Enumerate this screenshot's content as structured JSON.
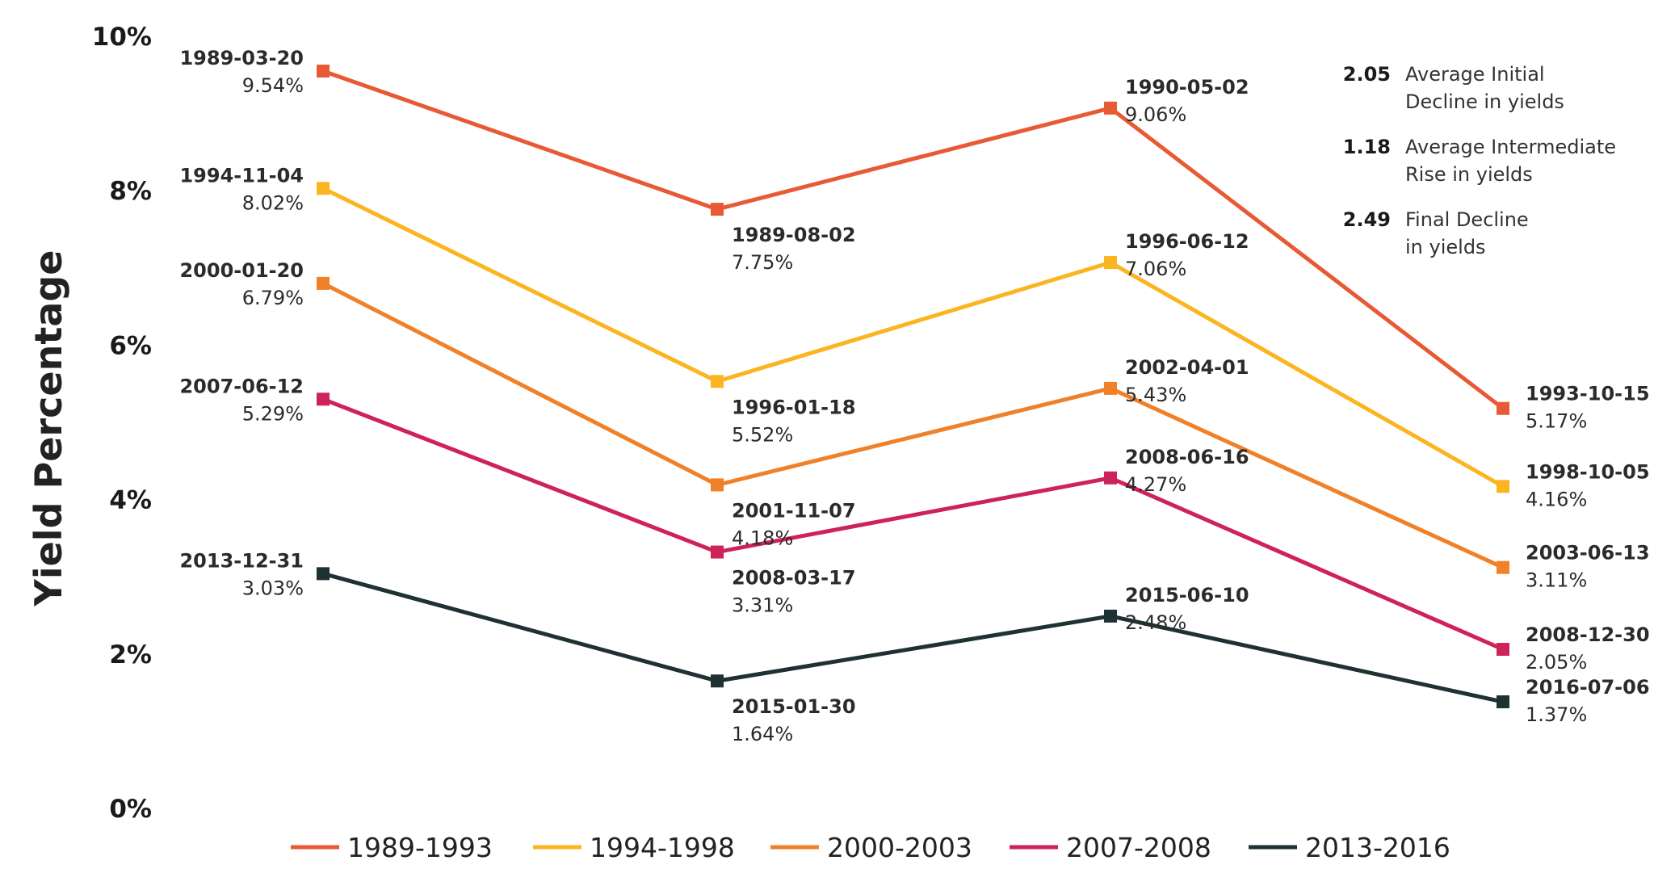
{
  "colors": {
    "1989-1993": "#E85A35",
    "1994-1998": "#FBB521",
    "2000-2003": "#F08129",
    "2007-2008": "#CE2359",
    "2013-2016": "#1F3233"
  },
  "chart_data": {
    "type": "line",
    "ylabel": "Yield Percentage",
    "ylim": [
      0,
      10
    ],
    "yticks": [
      "0%",
      "2%",
      "4%",
      "6%",
      "8%",
      "10%"
    ],
    "x": [
      1,
      2,
      3,
      4
    ],
    "grid": false,
    "legend_position": "bottom",
    "series": [
      {
        "name": "1989-1993",
        "values": [
          9.54,
          7.75,
          9.06,
          5.17
        ],
        "dates": [
          "1989-03-20",
          "1989-08-02",
          "1990-05-02",
          "1993-10-15"
        ],
        "labels": [
          "9.54%",
          "7.75%",
          "9.06%",
          "5.17%"
        ]
      },
      {
        "name": "1994-1998",
        "values": [
          8.02,
          5.52,
          7.06,
          4.16
        ],
        "dates": [
          "1994-11-04",
          "1996-01-18",
          "1996-06-12",
          "1998-10-05"
        ],
        "labels": [
          "8.02%",
          "5.52%",
          "7.06%",
          "4.16%"
        ]
      },
      {
        "name": "2000-2003",
        "values": [
          6.79,
          4.18,
          5.43,
          3.11
        ],
        "dates": [
          "2000-01-20",
          "2001-11-07",
          "2002-04-01",
          "2003-06-13"
        ],
        "labels": [
          "6.79%",
          "4.18%",
          "5.43%",
          "3.11%"
        ]
      },
      {
        "name": "2007-2008",
        "values": [
          5.29,
          3.31,
          4.27,
          2.05
        ],
        "dates": [
          "2007-06-12",
          "2008-03-17",
          "2008-06-16",
          "2008-12-30"
        ],
        "labels": [
          "5.29%",
          "3.31%",
          "4.27%",
          "2.05%"
        ]
      },
      {
        "name": "2013-2016",
        "values": [
          3.03,
          1.64,
          2.48,
          1.37
        ],
        "dates": [
          "2013-12-31",
          "2015-01-30",
          "2015-06-10",
          "2016-07-06"
        ],
        "labels": [
          "3.03%",
          "1.64%",
          "2.48%",
          "1.37%"
        ]
      }
    ],
    "annotations": [
      {
        "value": "2.05",
        "text": [
          "Average Initial",
          "Decline in yields"
        ]
      },
      {
        "value": "1.18",
        "text": [
          "Average Intermediate",
          "Rise in yields"
        ]
      },
      {
        "value": "2.49",
        "text": [
          "Final Decline",
          "in yields"
        ]
      }
    ]
  }
}
